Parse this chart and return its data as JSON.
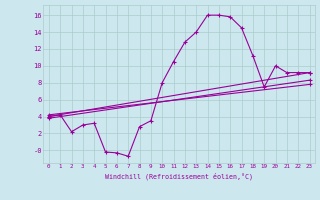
{
  "xlabel": "Windchill (Refroidissement éolien,°C)",
  "bg_color": "#cce8ee",
  "line_color": "#990099",
  "grid_color": "#aacccc",
  "x_ticks": [
    0,
    1,
    2,
    3,
    4,
    5,
    6,
    7,
    8,
    9,
    10,
    11,
    12,
    13,
    14,
    15,
    16,
    17,
    18,
    19,
    20,
    21,
    22,
    23
  ],
  "y_ticks": [
    0,
    2,
    4,
    6,
    8,
    10,
    12,
    14,
    16
  ],
  "y_tick_labels": [
    "-0",
    "2",
    "4",
    "6",
    "8",
    "10",
    "12",
    "14",
    "16"
  ],
  "ylim": [
    -1.5,
    17.2
  ],
  "xlim": [
    -0.5,
    23.5
  ],
  "series1_x": [
    0,
    1,
    2,
    3,
    4,
    5,
    6,
    7,
    8,
    9,
    10,
    11,
    12,
    13,
    14,
    15,
    16,
    17,
    18,
    19,
    20,
    21,
    22,
    23
  ],
  "series1_y": [
    4.0,
    4.2,
    2.2,
    3.0,
    3.2,
    -0.2,
    -0.3,
    -0.7,
    2.8,
    3.5,
    8.0,
    10.5,
    12.8,
    14.0,
    16.0,
    16.0,
    15.8,
    14.5,
    11.2,
    7.5,
    10.0,
    9.2,
    9.2,
    9.2
  ],
  "series2_x": [
    0,
    23
  ],
  "series2_y": [
    4.0,
    9.2
  ],
  "series3_x": [
    0,
    23
  ],
  "series3_y": [
    3.8,
    8.3
  ],
  "series4_x": [
    0,
    23
  ],
  "series4_y": [
    4.2,
    7.8
  ]
}
